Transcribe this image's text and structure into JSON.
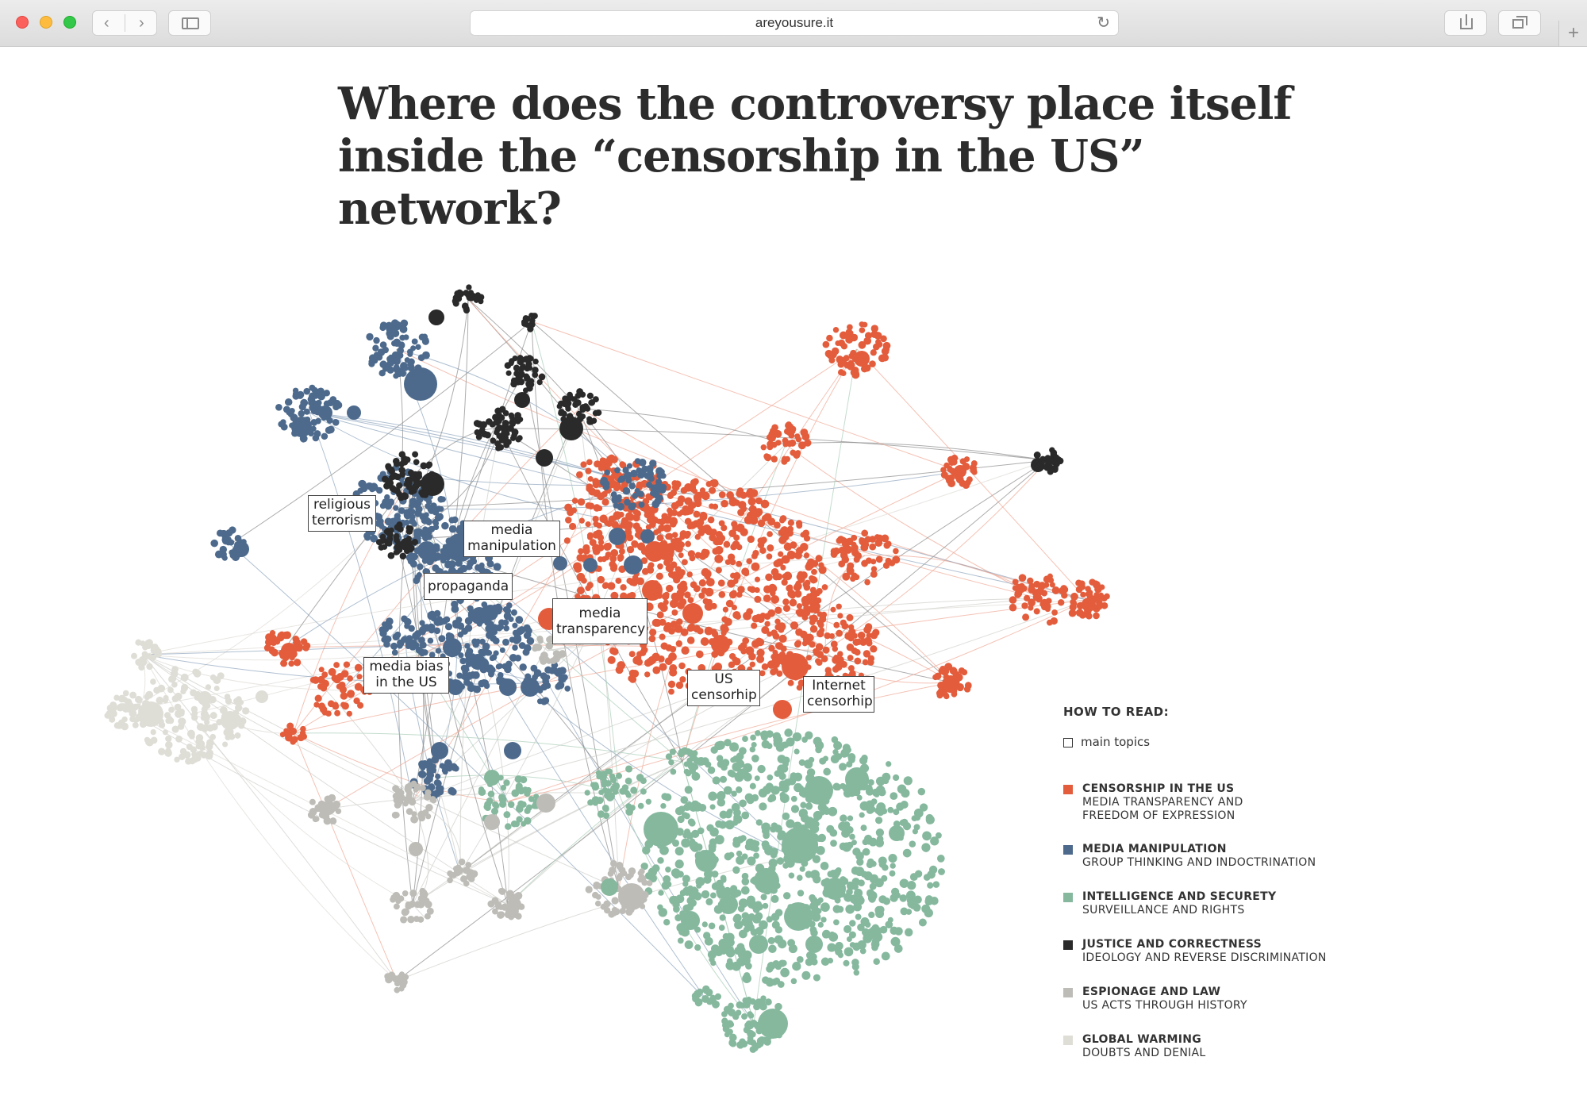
{
  "browser": {
    "url": "areyousure.it"
  },
  "page": {
    "title": "Where does the controversy place itself inside the “censorship in the US” network?"
  },
  "topics": [
    {
      "label": "religious terrorism"
    },
    {
      "label": "media manipulation"
    },
    {
      "label": "propaganda"
    },
    {
      "label": "media transparency"
    },
    {
      "label": "media bias in the US"
    },
    {
      "label": "US censorhip"
    },
    {
      "label": "Internet censorhip"
    }
  ],
  "legend": {
    "heading": "HOW TO READ:",
    "main_topics": "main topics",
    "items": [
      {
        "title": "CENSORSHIP IN THE US",
        "subtitle": "MEDIA TRANSPARENCY AND\nFREEDOM OF EXPRESSION",
        "color": "#e35d3d"
      },
      {
        "title": "MEDIA MANIPULATION",
        "subtitle": "GROUP THINKING AND INDOCTRINATION",
        "color": "#4d6a8c"
      },
      {
        "title": "INTELLIGENCE AND SECURETY",
        "subtitle": "SURVEILLANCE AND RIGHTS",
        "color": "#86b89e"
      },
      {
        "title": "JUSTICE AND CORRECTNESS",
        "subtitle": "IDEOLOGY AND REVERSE DISCRIMINATION",
        "color": "#2a2a2a"
      },
      {
        "title": "ESPIONAGE AND LAW",
        "subtitle": "US ACTS THROUGH HISTORY",
        "color": "#bdbcb7"
      },
      {
        "title": "GLOBAL WARMING",
        "subtitle": "DOUBTS AND DENIAL",
        "color": "#deddd6"
      }
    ]
  }
}
